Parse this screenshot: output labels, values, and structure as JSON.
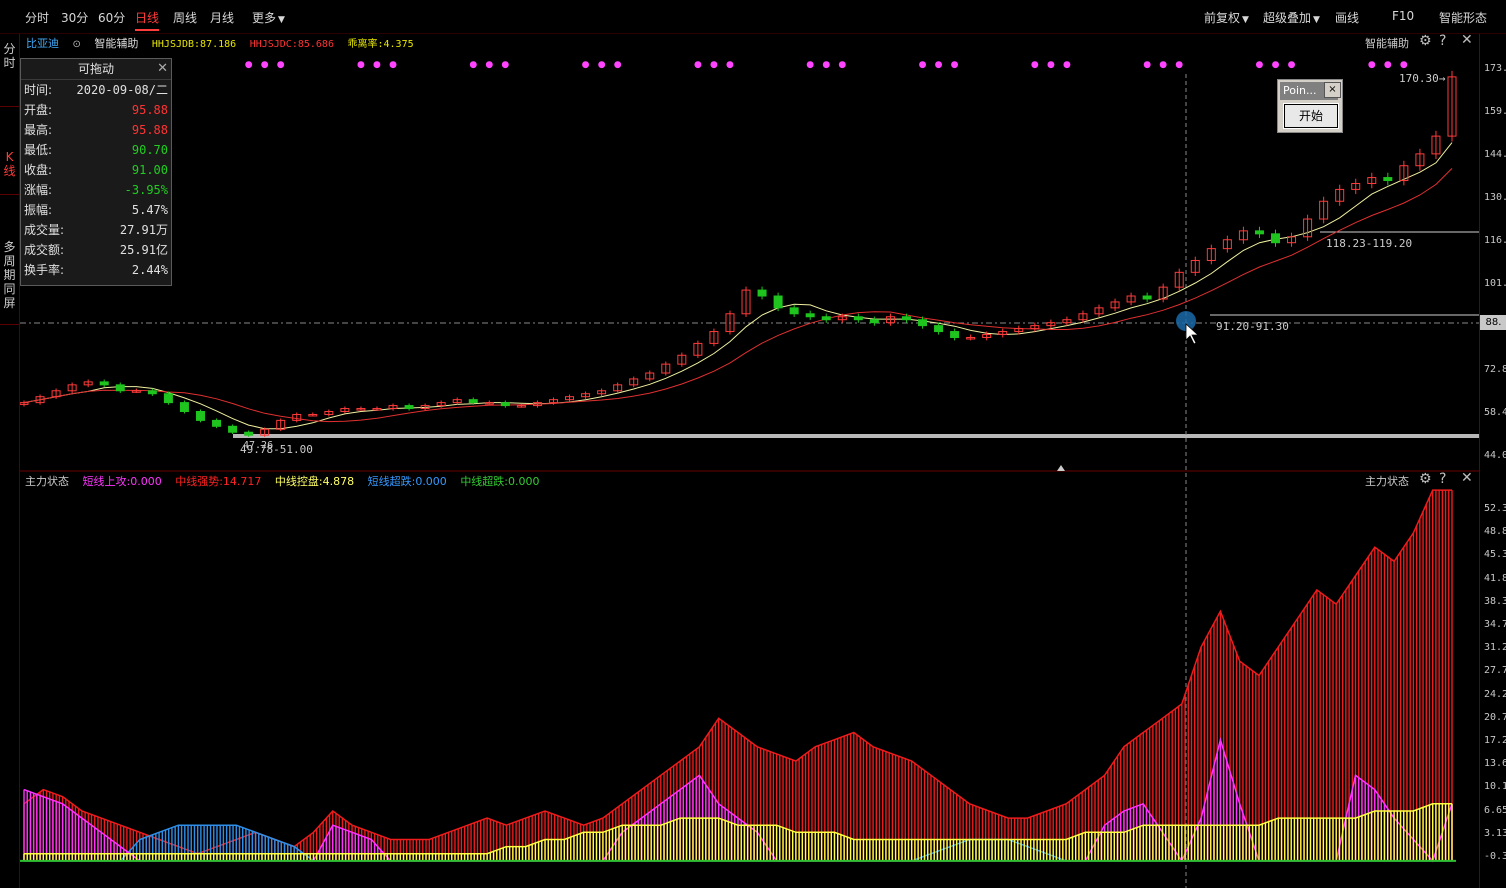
{
  "toolbar": {
    "left_items": [
      "分时",
      "30分",
      "60分",
      "日线",
      "周线",
      "月线",
      "更多"
    ],
    "active_index": 3,
    "right_items": [
      "前复权",
      "超级叠加",
      "画线",
      "F10",
      "智能形态"
    ]
  },
  "left_tabs": {
    "fenshi": "分时",
    "kline": "K线",
    "multi": "多周期同屏"
  },
  "main_panel": {
    "stock_name": "比亚迪",
    "indicator_name": "智能辅助",
    "legend": [
      {
        "label": "HHJSJDB:87.186",
        "color": "#e6e600"
      },
      {
        "label": "HHJSJDC:85.686",
        "color": "#ff3333"
      },
      {
        "label": "乖离率:4.375",
        "color": "#e6e600"
      }
    ],
    "right_title": "智能辅助",
    "annotations": {
      "high_label": "170.30",
      "zone_upper": "118.23-119.20",
      "zone_mid": "91.20-91.30",
      "low_label_a": "47.26",
      "low_label_b": "49.78-51.00"
    }
  },
  "info_panel": {
    "title": "可拖动",
    "rows": [
      {
        "k": "时间:",
        "v": "2020-09-08/二",
        "color": "#e0e0e0"
      },
      {
        "k": "开盘:",
        "v": "95.88",
        "color": "#ff3333"
      },
      {
        "k": "最高:",
        "v": "95.88",
        "color": "#ff3333"
      },
      {
        "k": "最低:",
        "v": "90.70",
        "color": "#22cc22"
      },
      {
        "k": "收盘:",
        "v": "91.00",
        "color": "#22cc22"
      },
      {
        "k": "涨幅:",
        "v": "-3.95%",
        "color": "#22cc22"
      },
      {
        "k": "振幅:",
        "v": "5.47%",
        "color": "#e0e0e0"
      },
      {
        "k": "成交量:",
        "v": "27.91万",
        "color": "#e0e0e0"
      },
      {
        "k": "成交额:",
        "v": "25.91亿",
        "color": "#e0e0e0"
      },
      {
        "k": "换手率:",
        "v": "2.44%",
        "color": "#e0e0e0"
      }
    ]
  },
  "point_dialog": {
    "title": "Poin...",
    "close": "×",
    "button": "开始"
  },
  "price_axis": {
    "ticks": [
      "173.",
      "159.",
      "144.",
      "130.",
      "116.",
      "101.",
      "72.8",
      "58.4",
      "44.0"
    ],
    "current_tag": "88."
  },
  "sub_panel": {
    "title": "主力状态",
    "legend": [
      {
        "label": "短线上攻:0.000",
        "color": "#ff33ff"
      },
      {
        "label": "中线强势:14.717",
        "color": "#ff2222"
      },
      {
        "label": "中线控盘:4.878",
        "color": "#ffff66"
      },
      {
        "label": "短线超跌:0.000",
        "color": "#3399ff"
      },
      {
        "label": "中线超跌:0.000",
        "color": "#33cc33"
      }
    ],
    "right_title": "主力状态",
    "ticks": [
      "52.3",
      "48.8",
      "45.3",
      "41.8",
      "38.3",
      "34.7",
      "31.2",
      "27.7",
      "24.2",
      "20.7",
      "17.2",
      "13.6",
      "10.1",
      "6.65",
      "3.13",
      "-0.3"
    ]
  },
  "icons": {
    "settings": "gear-icon",
    "help": "help-icon",
    "close": "close-icon",
    "dropdown": "chevron-down-icon"
  },
  "chart_data": [
    {
      "type": "candlestick",
      "title": "比亚迪",
      "ylim": [
        44.0,
        173.0
      ],
      "close_series_approx": [
        60,
        62,
        64,
        66,
        67,
        66,
        64,
        64,
        63,
        60,
        57,
        54,
        52,
        50,
        49,
        51,
        54,
        56,
        56,
        57,
        58,
        58,
        58,
        59,
        58,
        59,
        60,
        61,
        60,
        60,
        59,
        59,
        60,
        61,
        62,
        63,
        64,
        66,
        68,
        70,
        73,
        76,
        80,
        84,
        90,
        98,
        96,
        92,
        90,
        89,
        88,
        89,
        88,
        87,
        89,
        88,
        86,
        84,
        82,
        82,
        83,
        84,
        85,
        86,
        87,
        88,
        90,
        92,
        94,
        96,
        95,
        99,
        104,
        108,
        112,
        115,
        118,
        117,
        114,
        116,
        122,
        128,
        132,
        134,
        136,
        135,
        140,
        144,
        150,
        170
      ]
    },
    {
      "type": "bar",
      "title": "主力状态",
      "ylim": [
        -0.3,
        52.3
      ],
      "series": [
        {
          "name": "中线强势",
          "values_approx": [
            8,
            10,
            9,
            7,
            6,
            5,
            4,
            3,
            2,
            1,
            2,
            3,
            4,
            3,
            2,
            4,
            7,
            5,
            4,
            3,
            3,
            3,
            4,
            5,
            6,
            5,
            6,
            7,
            6,
            5,
            6,
            8,
            10,
            12,
            14,
            16,
            20,
            18,
            16,
            15,
            14,
            16,
            17,
            18,
            16,
            15,
            14,
            12,
            10,
            8,
            7,
            6,
            6,
            7,
            8,
            10,
            12,
            16,
            18,
            20,
            22,
            30,
            35,
            28,
            26,
            30,
            34,
            38,
            36,
            40,
            44,
            42,
            46,
            52,
            52
          ]
        },
        {
          "name": "中线控盘",
          "values_approx": [
            1,
            1,
            1,
            1,
            1,
            1,
            1,
            1,
            1,
            1,
            1,
            1,
            1,
            1,
            1,
            1,
            1,
            1,
            1,
            1,
            1,
            1,
            1,
            1,
            1,
            2,
            2,
            3,
            3,
            4,
            4,
            5,
            5,
            5,
            6,
            6,
            6,
            5,
            5,
            5,
            4,
            4,
            4,
            3,
            3,
            3,
            3,
            3,
            3,
            3,
            3,
            3,
            3,
            3,
            3,
            4,
            4,
            4,
            5,
            5,
            5,
            5,
            5,
            5,
            5,
            6,
            6,
            6,
            6,
            6,
            7,
            7,
            7,
            8,
            8
          ]
        },
        {
          "name": "短线上攻",
          "values_approx": [
            10,
            9,
            8,
            6,
            4,
            2,
            0,
            0,
            0,
            0,
            0,
            0,
            0,
            0,
            0,
            0,
            5,
            4,
            3,
            0,
            0,
            0,
            0,
            0,
            0,
            0,
            0,
            0,
            0,
            0,
            0,
            4,
            6,
            8,
            10,
            12,
            8,
            6,
            4,
            0,
            0,
            0,
            0,
            0,
            0,
            0,
            0,
            0,
            0,
            0,
            0,
            0,
            0,
            0,
            0,
            0,
            5,
            7,
            8,
            4,
            0,
            6,
            17,
            8,
            0,
            0,
            0,
            0,
            0,
            12,
            10,
            6,
            3,
            0,
            8
          ]
        },
        {
          "name": "短线超跌",
          "values_approx": [
            0,
            0,
            0,
            0,
            0,
            0,
            3,
            4,
            5,
            5,
            5,
            5,
            4,
            3,
            2,
            0,
            0,
            0,
            0,
            0,
            0,
            0,
            0,
            0,
            0,
            0,
            0,
            0,
            0,
            0,
            0,
            0,
            0,
            0,
            0,
            0,
            0,
            0,
            0,
            0,
            0,
            0,
            0,
            0,
            0,
            0,
            0,
            1,
            2,
            3,
            3,
            3,
            2,
            1,
            0,
            0,
            0,
            0,
            0,
            0,
            0,
            0,
            0,
            0,
            0,
            0,
            0,
            0,
            0,
            0,
            0,
            0,
            0,
            0,
            0
          ]
        }
      ]
    }
  ]
}
